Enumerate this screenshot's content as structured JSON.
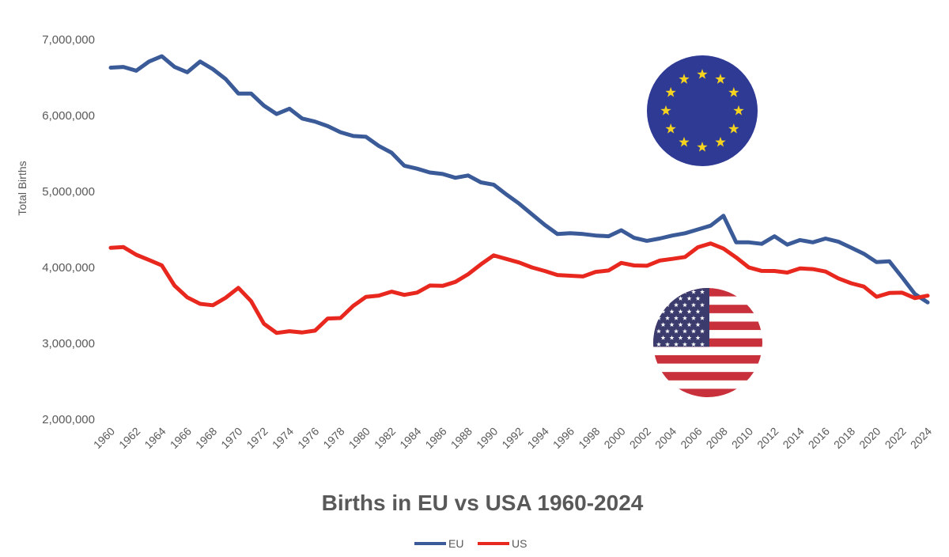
{
  "chart_data": {
    "type": "line",
    "title": "Births in EU vs USA 1960-2024",
    "ylabel": "Total Births",
    "xlabel": "",
    "ylim": [
      2000000,
      7000000
    ],
    "yticks": [
      2000000,
      3000000,
      4000000,
      5000000,
      6000000,
      7000000
    ],
    "ytick_labels": [
      "2,000,000",
      "3,000,000",
      "4,000,000",
      "5,000,000",
      "6,000,000",
      "7,000,000"
    ],
    "xlim": [
      1960,
      2024
    ],
    "xtick_labels": [
      "1960",
      "1962",
      "1964",
      "1966",
      "1968",
      "1970",
      "1972",
      "1974",
      "1976",
      "1978",
      "1980",
      "1982",
      "1984",
      "1986",
      "1988",
      "1990",
      "1992",
      "1994",
      "1996",
      "1998",
      "2000",
      "2002",
      "2004",
      "2006",
      "2008",
      "2010",
      "2012",
      "2014",
      "2016",
      "2018",
      "2020",
      "2022",
      "2024"
    ],
    "grid": false,
    "legend_position": "bottom",
    "series": [
      {
        "name": "EU",
        "color": "#3A5A98",
        "x": [
          1960,
          1961,
          1962,
          1963,
          1964,
          1965,
          1966,
          1967,
          1968,
          1969,
          1970,
          1971,
          1972,
          1973,
          1974,
          1975,
          1976,
          1977,
          1978,
          1979,
          1980,
          1981,
          1982,
          1983,
          1984,
          1985,
          1986,
          1987,
          1988,
          1989,
          1990,
          1991,
          1992,
          1993,
          1994,
          1995,
          1996,
          1997,
          1998,
          1999,
          2000,
          2001,
          2002,
          2003,
          2004,
          2005,
          2006,
          2007,
          2008,
          2009,
          2010,
          2011,
          2012,
          2013,
          2014,
          2015,
          2016,
          2017,
          2018,
          2019,
          2020,
          2021,
          2022,
          2023,
          2024
        ],
        "values": [
          6630000,
          6640000,
          6590000,
          6710000,
          6780000,
          6640000,
          6570000,
          6710000,
          6610000,
          6480000,
          6290000,
          6290000,
          6130000,
          6020000,
          6090000,
          5960000,
          5920000,
          5860000,
          5780000,
          5730000,
          5720000,
          5600000,
          5510000,
          5340000,
          5300000,
          5250000,
          5230000,
          5180000,
          5210000,
          5120000,
          5090000,
          4960000,
          4840000,
          4700000,
          4560000,
          4440000,
          4450000,
          4440000,
          4420000,
          4410000,
          4490000,
          4390000,
          4350000,
          4380000,
          4420000,
          4450000,
          4500000,
          4550000,
          4680000,
          4330000,
          4330000,
          4310000,
          4410000,
          4300000,
          4360000,
          4330000,
          4380000,
          4340000,
          4260000,
          4180000,
          4070000,
          4080000,
          3870000,
          3650000,
          3540000
        ]
      },
      {
        "name": "US",
        "color": "#E8281E",
        "x": [
          1960,
          1961,
          1962,
          1963,
          1964,
          1965,
          1966,
          1967,
          1968,
          1969,
          1970,
          1971,
          1972,
          1973,
          1974,
          1975,
          1976,
          1977,
          1978,
          1979,
          1980,
          1981,
          1982,
          1983,
          1984,
          1985,
          1986,
          1987,
          1988,
          1989,
          1990,
          1991,
          1992,
          1993,
          1994,
          1995,
          1996,
          1997,
          1998,
          1999,
          2000,
          2001,
          2002,
          2003,
          2004,
          2005,
          2006,
          2007,
          2008,
          2009,
          2010,
          2011,
          2012,
          2013,
          2014,
          2015,
          2016,
          2017,
          2018,
          2019,
          2020,
          2021,
          2022,
          2023,
          2024
        ],
        "values": [
          4258000,
          4268000,
          4167000,
          4098000,
          4027000,
          3760000,
          3606000,
          3521000,
          3502000,
          3600000,
          3731000,
          3556000,
          3258000,
          3137000,
          3160000,
          3144000,
          3168000,
          3327000,
          3333000,
          3494000,
          3612000,
          3629000,
          3681000,
          3639000,
          3669000,
          3761000,
          3757000,
          3809000,
          3910000,
          4041000,
          4158000,
          4111000,
          4065000,
          4000000,
          3953000,
          3900000,
          3891000,
          3881000,
          3942000,
          3959000,
          4059000,
          4026000,
          4022000,
          4090000,
          4112000,
          4138000,
          4266000,
          4316000,
          4248000,
          4131000,
          3999000,
          3954000,
          3953000,
          3932000,
          3988000,
          3978000,
          3946000,
          3856000,
          3792000,
          3748000,
          3614000,
          3664000,
          3668000,
          3596000,
          3628000
        ]
      }
    ]
  },
  "decorations": {
    "eu_flag": {
      "icon": "eu-flag-icon",
      "blue": "#2E3A93",
      "star": "#F5D31E"
    },
    "us_flag": {
      "icon": "us-flag-icon",
      "red": "#C8313B",
      "white": "#FFFFFF",
      "blue": "#3B3B6E"
    }
  }
}
